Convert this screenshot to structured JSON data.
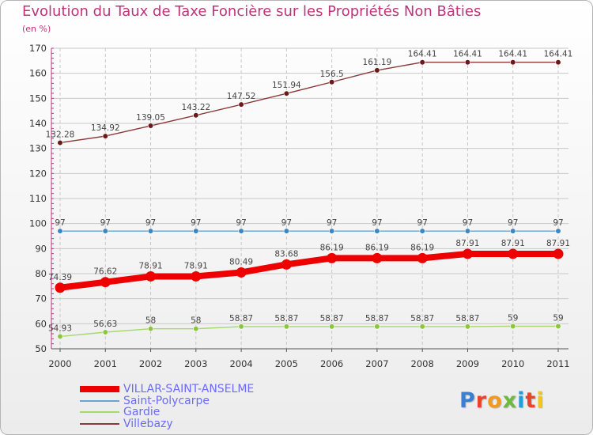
{
  "chart_data": {
    "type": "line",
    "title": "Evolution du Taux de Taxe Foncière sur les Propriétés Non Bâties",
    "unit_label": "(en %)",
    "xlabel": "",
    "ylabel": "",
    "x": [
      "2000",
      "2001",
      "2002",
      "2003",
      "2004",
      "2005",
      "2006",
      "2007",
      "2008",
      "2009",
      "2010",
      "2011"
    ],
    "ylim": [
      50,
      170
    ],
    "yticks": [
      50,
      60,
      70,
      80,
      90,
      100,
      110,
      120,
      130,
      140,
      150,
      160,
      170
    ],
    "grid": true,
    "legend_position": "bottom-left",
    "series": [
      {
        "name": "Villebazy",
        "color": "#8b3a3a",
        "dot_color": "#6b1a1a",
        "values": [
          132.28,
          134.92,
          139.05,
          143.22,
          147.52,
          151.94,
          156.5,
          161.19,
          164.41,
          164.41,
          164.41,
          164.41
        ],
        "labels": [
          "132.28",
          "134.92",
          "139.05",
          "143.22",
          "147.52",
          "151.94",
          "156.5",
          "161.19",
          "164.41",
          "164.41",
          "164.41",
          "164.41"
        ]
      },
      {
        "name": "Saint-Polycarpe",
        "color": "#6aa4cf",
        "dot_color": "#3b86c4",
        "values": [
          97,
          97,
          97,
          97,
          97,
          97,
          97,
          97,
          97,
          97,
          97,
          97
        ],
        "labels": [
          "97",
          "97",
          "97",
          "97",
          "97",
          "97",
          "97",
          "97",
          "97",
          "97",
          "97",
          "97"
        ]
      },
      {
        "name": "VILLAR-SAINT-ANSELME",
        "color": "#ee0000",
        "dot_color": "#ee0000",
        "values": [
          74.39,
          76.62,
          78.91,
          78.91,
          80.49,
          83.68,
          86.19,
          86.19,
          86.19,
          87.91,
          87.91,
          87.91
        ],
        "labels": [
          "74.39",
          "76.62",
          "78.91",
          "78.91",
          "80.49",
          "83.68",
          "86.19",
          "86.19",
          "86.19",
          "87.91",
          "87.91",
          "87.91"
        ]
      },
      {
        "name": "Gardie",
        "color": "#a6d96a",
        "dot_color": "#8cc63f",
        "values": [
          54.93,
          56.63,
          58,
          58,
          58.87,
          58.87,
          58.87,
          58.87,
          58.87,
          58.87,
          59,
          59
        ],
        "labels": [
          "54.93",
          "56.63",
          "58",
          "58",
          "58.87",
          "58.87",
          "58.87",
          "58.87",
          "58.87",
          "58.87",
          "59",
          "59"
        ]
      }
    ],
    "legend_order": [
      "VILLAR-SAINT-ANSELME",
      "Saint-Polycarpe",
      "Gardie",
      "Villebazy"
    ]
  },
  "branding": {
    "logo_letters": [
      {
        "ch": "P",
        "color": "#3b7fd0"
      },
      {
        "ch": "r",
        "color": "#e8442a"
      },
      {
        "ch": "o",
        "color": "#f29a1e"
      },
      {
        "ch": "x",
        "color": "#6cbb3c"
      },
      {
        "ch": "i",
        "color": "#1f9fd8"
      },
      {
        "ch": "t",
        "color": "#e8442a"
      },
      {
        "ch": "i",
        "color": "#f5c518"
      }
    ]
  }
}
